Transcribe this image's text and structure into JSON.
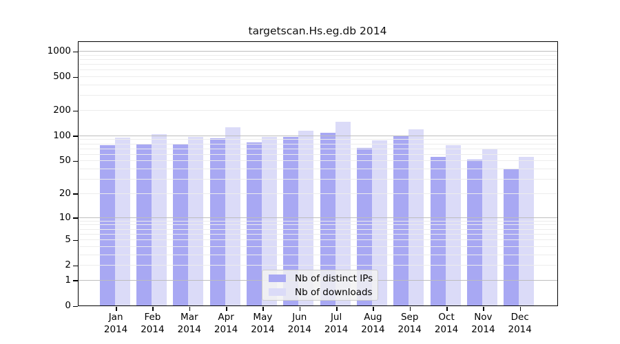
{
  "title": "targetscan.Hs.eg.db 2014",
  "chart_data": {
    "type": "bar",
    "title": "targetscan.Hs.eg.db 2014",
    "categories": [
      "Jan 2014",
      "Feb 2014",
      "Mar 2014",
      "Apr 2014",
      "May 2014",
      "Jun 2014",
      "Jul 2014",
      "Aug 2014",
      "Sep 2014",
      "Oct 2014",
      "Nov 2014",
      "Dec 2014"
    ],
    "series": [
      {
        "name": "Nb of distinct IPs",
        "color": "#a8a8f3",
        "values": [
          76,
          79,
          80,
          93,
          83,
          96,
          108,
          71,
          98,
          56,
          51,
          40
        ]
      },
      {
        "name": "Nb of downloads",
        "color": "#dbdbf8",
        "values": [
          95,
          103,
          96,
          126,
          97,
          113,
          145,
          87,
          119,
          77,
          70,
          55
        ]
      }
    ],
    "xlabel": "",
    "ylabel": "",
    "y_scale": "log1p",
    "y_ticks": [
      0,
      1,
      2,
      5,
      10,
      20,
      50,
      100,
      200,
      500,
      1000
    ],
    "ylim": [
      0,
      1200
    ],
    "grid": true,
    "grid_major_levels": [
      1,
      10,
      100,
      1000
    ],
    "legend_position": "bottom-center",
    "colors": {
      "axis": "#000000",
      "grid_major": "#bdbdbd",
      "grid_minor": "#ececec",
      "background": "#ffffff"
    }
  }
}
